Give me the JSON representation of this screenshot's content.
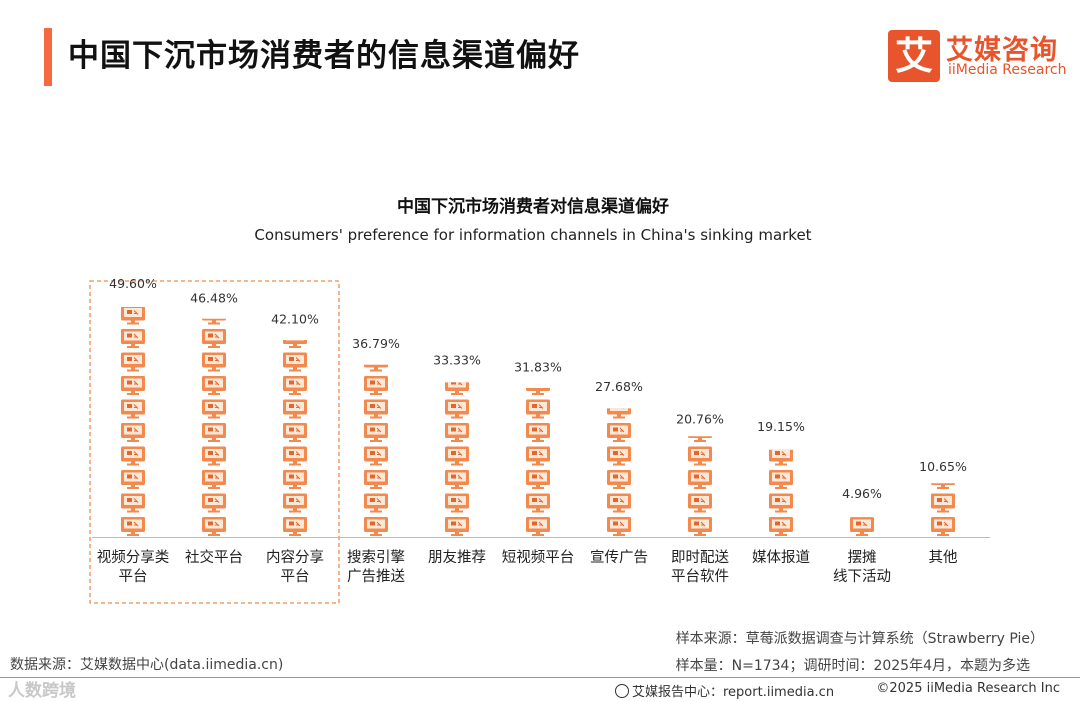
{
  "header": {
    "title": "中国下沉市场消费者的信息渠道偏好",
    "logo_mark": "艾",
    "logo_cn": "艾媒咨询",
    "logo_en": "iiMedia Research"
  },
  "chart_data": {
    "type": "bar",
    "title": "中国下沉市场消费者对信息渠道偏好",
    "subtitle": "Consumers' preference for information channels in China's sinking market",
    "categories": [
      [
        "视频分享类",
        "平台"
      ],
      [
        "社交平台"
      ],
      [
        "内容分享",
        "平台"
      ],
      [
        "搜索引擎",
        "广告推送"
      ],
      [
        "朋友推荐"
      ],
      [
        "短视频平台"
      ],
      [
        "宣传广告"
      ],
      [
        "即时配送",
        "平台软件"
      ],
      [
        "媒体报道"
      ],
      [
        "摆摊",
        "线下活动"
      ],
      [
        "其他"
      ]
    ],
    "values": [
      49.6,
      46.48,
      42.1,
      36.79,
      33.33,
      31.83,
      27.68,
      20.76,
      19.15,
      4.96,
      10.65
    ],
    "value_labels": [
      "49.60%",
      "46.48%",
      "42.10%",
      "36.79%",
      "33.33%",
      "31.83%",
      "27.68%",
      "20.76%",
      "19.15%",
      "4.96%",
      "10.65%"
    ],
    "units_per_icon": 5,
    "highlighted_top": 3,
    "ylim": [
      0,
      50
    ],
    "xlabel": "",
    "ylabel": "",
    "colors": {
      "icon": "#f28a4f",
      "icon_dark": "#e2672f",
      "screen": "#fde8d8",
      "highlight_border": "#f08a4b",
      "axis": "#bbbbbb"
    }
  },
  "footer": {
    "data_source": "数据来源：艾媒数据中心(data.iimedia.cn)",
    "sample_source": "样本来源：草莓派数据调查与计算系统（Strawberry Pie）",
    "sample_size": "样本量：N=1734；调研时间：2025年4月，本题为多选",
    "watermark": "人数跨境",
    "report_center": "艾媒报告中心：report.iimedia.cn",
    "copyright": "©2025  iiMedia Research  Inc"
  }
}
